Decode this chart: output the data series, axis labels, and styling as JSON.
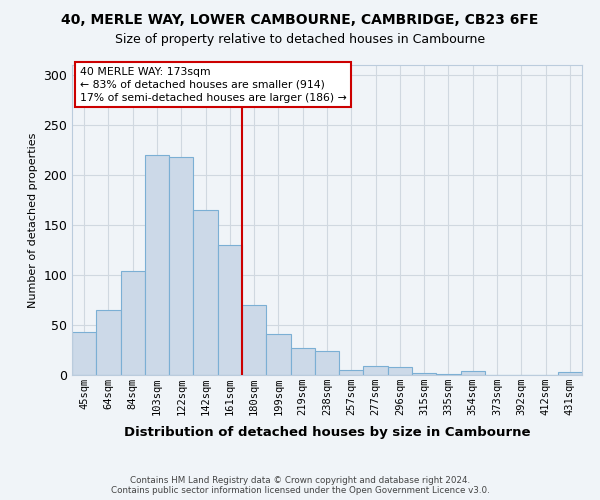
{
  "title1": "40, MERLE WAY, LOWER CAMBOURNE, CAMBRIDGE, CB23 6FE",
  "title2": "Size of property relative to detached houses in Cambourne",
  "xlabel": "Distribution of detached houses by size in Cambourne",
  "ylabel": "Number of detached properties",
  "footnote": "Contains HM Land Registry data © Crown copyright and database right 2024.\nContains public sector information licensed under the Open Government Licence v3.0.",
  "categories": [
    "45sqm",
    "64sqm",
    "84sqm",
    "103sqm",
    "122sqm",
    "142sqm",
    "161sqm",
    "180sqm",
    "199sqm",
    "219sqm",
    "238sqm",
    "257sqm",
    "277sqm",
    "296sqm",
    "315sqm",
    "335sqm",
    "354sqm",
    "373sqm",
    "392sqm",
    "412sqm",
    "431sqm"
  ],
  "values": [
    43,
    65,
    104,
    220,
    218,
    165,
    130,
    70,
    41,
    27,
    24,
    5,
    9,
    8,
    2,
    1,
    4,
    0,
    0,
    0,
    3
  ],
  "bar_color": "#ccd9e8",
  "bar_edgecolor": "#7bafd4",
  "ref_line_index": 7,
  "ref_line_color": "#cc0000",
  "annotation_text": "40 MERLE WAY: 173sqm\n← 83% of detached houses are smaller (914)\n17% of semi-detached houses are larger (186) →",
  "ylim": [
    0,
    310
  ],
  "yticks": [
    0,
    50,
    100,
    150,
    200,
    250,
    300
  ],
  "grid_color": "#d0d8e0",
  "background_color": "#f0f4f8",
  "title_fontsize": 10,
  "subtitle_fontsize": 9
}
